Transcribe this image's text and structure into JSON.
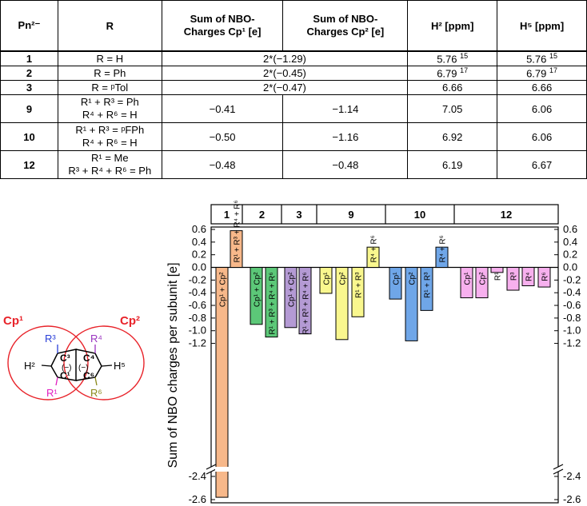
{
  "table": {
    "headers": {
      "pn": "Pn²⁻",
      "r": "R",
      "cp1": [
        "Sum of NBO-",
        "Charges Cp¹ [e]"
      ],
      "cp2": [
        "Sum of NBO-",
        "Charges Cp² [e]"
      ],
      "h2": "H² [ppm]",
      "h5": "H⁵ [ppm]"
    },
    "rows": [
      {
        "id": "1",
        "r": [
          "R = H"
        ],
        "merged": "2*(−1.29)",
        "h2": "5.76",
        "h2_ref": "15",
        "h5": "5.76",
        "h5_ref": "15"
      },
      {
        "id": "2",
        "r": [
          "R = Ph"
        ],
        "merged": "2*(−0.45)",
        "h2": "6.79",
        "h2_ref": "17",
        "h5": "6.79",
        "h5_ref": "17"
      },
      {
        "id": "3",
        "r": [
          "R = ᵖTol"
        ],
        "merged": "2*(−0.47)",
        "h2": "6.66",
        "h2_ref": "",
        "h5": "6.66",
        "h5_ref": ""
      },
      {
        "id": "9",
        "r": [
          "R¹ + R³ = Ph",
          "R⁴ + R⁶ = H"
        ],
        "cp1": "−0.41",
        "cp2": "−1.14",
        "h2": "7.05",
        "h2_ref": "",
        "h5": "6.06",
        "h5_ref": ""
      },
      {
        "id": "10",
        "r": [
          "R¹ + R³ = ᵖFPh",
          "R⁴ + R⁶ = H"
        ],
        "cp1": "−0.50",
        "cp2": "−1.16",
        "h2": "6.92",
        "h2_ref": "",
        "h5": "6.06",
        "h5_ref": ""
      },
      {
        "id": "12",
        "r": [
          "R¹ = Me",
          "R³ + R⁴ + R⁶ = Ph"
        ],
        "cp1": "−0.48",
        "cp2": "−0.48",
        "h2": "6.19",
        "h2_ref": "",
        "h5": "6.67",
        "h5_ref": ""
      }
    ]
  },
  "molecule": {
    "cp1_label": "Cp¹",
    "cp2_label": "Cp²",
    "atoms": {
      "c1": "C¹",
      "c3": "C³",
      "c4": "C⁴",
      "c6": "C⁶",
      "r1": "R¹",
      "r3": "R³",
      "r4": "R⁴",
      "r6": "R⁶",
      "h2": "H²",
      "h5": "H⁵"
    },
    "colors": {
      "cp": "#e8232a",
      "r1": "#e020c0",
      "r3": "#2a3fd8",
      "r4": "#9a34c0",
      "r6": "#8a8a1a"
    }
  },
  "chart_data": {
    "type": "bar",
    "ylabel": "Sum of NBO charges per subunit [e]",
    "yticks": [
      "0.6",
      "0.4",
      "0.2",
      "0.0",
      "-0.2",
      "-0.4",
      "-0.6",
      "-0.8",
      "-1.0",
      "-1.2",
      "-2.4",
      "-2.6"
    ],
    "ylim": [
      -2.6,
      0.6
    ],
    "axis_break": [
      -2.35,
      -1.25
    ],
    "groups": [
      "1",
      "2",
      "3",
      "9",
      "10",
      "12"
    ],
    "bars": [
      {
        "group": "1",
        "label": "Cp¹ + Cp²",
        "value": -2.58,
        "color": "#f7b88a"
      },
      {
        "group": "1",
        "label": "R¹ + R³ + R⁴ + R⁶",
        "value": 0.58,
        "color": "#f7b88a"
      },
      {
        "group": "2",
        "label": "Cp¹ + Cp²",
        "value": -0.9,
        "color": "#5cc878"
      },
      {
        "group": "2",
        "label": "R¹ + R³ + R⁴ + R⁶",
        "value": -1.1,
        "color": "#5cc878"
      },
      {
        "group": "3",
        "label": "Cp¹ + Cp²",
        "value": -0.95,
        "color": "#b49ad4"
      },
      {
        "group": "3",
        "label": "R¹ + R³ + R⁴ + R⁶",
        "value": -1.05,
        "color": "#b49ad4"
      },
      {
        "group": "9",
        "label": "Cp¹",
        "value": -0.41,
        "color": "#f9f78e"
      },
      {
        "group": "9",
        "label": "Cp²",
        "value": -1.14,
        "color": "#f9f78e"
      },
      {
        "group": "9",
        "label": "R¹ + R³",
        "value": -0.78,
        "color": "#f9f78e"
      },
      {
        "group": "9",
        "label": "R⁴ + R⁶",
        "value": 0.32,
        "color": "#f9f78e"
      },
      {
        "group": "10",
        "label": "Cp¹",
        "value": -0.5,
        "color": "#6fa6e8"
      },
      {
        "group": "10",
        "label": "Cp²",
        "value": -1.16,
        "color": "#6fa6e8"
      },
      {
        "group": "10",
        "label": "R¹ + R³",
        "value": -0.68,
        "color": "#6fa6e8"
      },
      {
        "group": "10",
        "label": "R⁴ + R⁶",
        "value": 0.32,
        "color": "#6fa6e8"
      },
      {
        "group": "12",
        "label": "Cp¹",
        "value": -0.48,
        "color": "#f7b0ee"
      },
      {
        "group": "12",
        "label": "Cp²",
        "value": -0.48,
        "color": "#f7b0ee"
      },
      {
        "group": "12",
        "label": "R¹",
        "value": -0.08,
        "color": "#f7b0ee"
      },
      {
        "group": "12",
        "label": "R³",
        "value": -0.36,
        "color": "#f7b0ee"
      },
      {
        "group": "12",
        "label": "R⁴",
        "value": -0.29,
        "color": "#f7b0ee"
      },
      {
        "group": "12",
        "label": "R⁶",
        "value": -0.31,
        "color": "#f7b0ee"
      }
    ]
  }
}
